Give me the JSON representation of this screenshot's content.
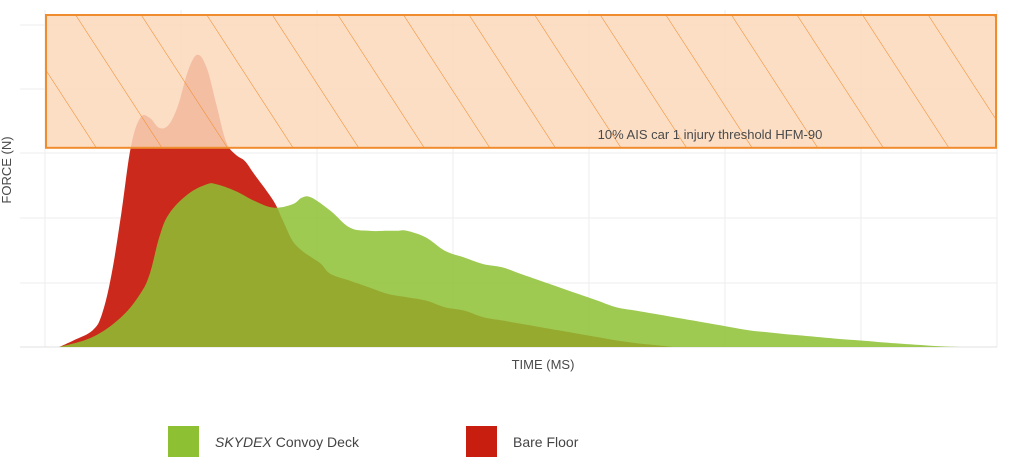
{
  "chart_data": {
    "type": "area",
    "title": "",
    "xlabel": "TIME (MS)",
    "ylabel": "FORCE (N)",
    "grid": true,
    "axis_tick_labels_shown": false,
    "x_range": [
      0,
      100
    ],
    "y_range": [
      0,
      100
    ],
    "series": [
      {
        "name": "SKYDEX Convoy Deck",
        "name_italic_part": "SKYDEX",
        "name_rest": " Convoy Deck",
        "color": "#8dc133",
        "x": [
          1.5,
          5,
          8,
          10,
          11,
          12,
          13,
          15,
          17,
          18,
          20,
          22,
          24,
          26,
          27,
          28,
          30,
          32,
          34,
          36,
          37,
          38,
          40,
          42,
          44,
          46,
          48,
          50,
          52,
          54,
          56,
          58,
          60,
          62,
          64,
          66,
          68,
          70,
          72,
          74,
          76,
          78,
          80,
          82,
          84,
          86,
          88,
          90,
          92,
          94,
          96
        ],
        "y": [
          0,
          3,
          9,
          16,
          22,
          33,
          40,
          46,
          49,
          49,
          47,
          44,
          42,
          43,
          45,
          45,
          41,
          36,
          35,
          35,
          35,
          35,
          33,
          29,
          27,
          25,
          24,
          22,
          20,
          18,
          16,
          14,
          12,
          11,
          10,
          9,
          8,
          7,
          6,
          5,
          4.4,
          3.8,
          3.3,
          2.8,
          2.3,
          1.9,
          1.4,
          1.0,
          0.6,
          0.2,
          0
        ]
      },
      {
        "name": "Bare Floor",
        "color": "#c81e0f",
        "x": [
          1.5,
          3,
          5,
          6,
          7,
          8,
          9,
          10,
          11,
          12,
          13,
          14,
          15,
          16,
          17,
          18,
          19,
          20,
          21,
          22,
          24,
          25,
          26,
          27,
          28,
          29,
          30,
          32,
          34,
          36,
          38,
          40,
          42,
          44,
          46,
          48,
          50,
          52,
          54,
          56,
          58,
          60,
          62,
          64,
          66
        ],
        "y": [
          0,
          2,
          5,
          10,
          22,
          40,
          60,
          69,
          69,
          66,
          67,
          73,
          83,
          88,
          84,
          73,
          62,
          58,
          56,
          52,
          44,
          38,
          32,
          29,
          27,
          25,
          22,
          20,
          18,
          16,
          15,
          14,
          12,
          11,
          9,
          8,
          7,
          6,
          5,
          4,
          3,
          2,
          1.2,
          0.6,
          0
        ]
      }
    ],
    "threshold_band": {
      "label": "10% AIS car 1 injury threshold HFM-90",
      "y_from": 60,
      "y_to": 100,
      "fill": "#fbd8bb",
      "stroke": "#f08c2d"
    },
    "legend_position": "bottom"
  }
}
